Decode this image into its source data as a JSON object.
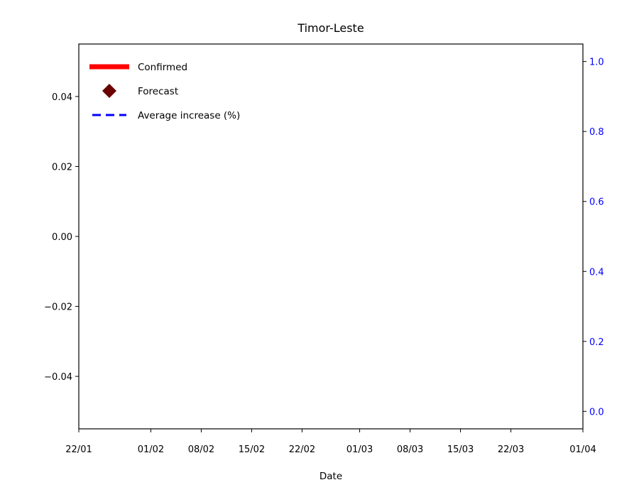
{
  "chart_data": {
    "type": "line",
    "title": "Timor-Leste",
    "xlabel": "Date",
    "ylabel": "",
    "ylabel_right": "",
    "x_tick_labels": [
      "22/01",
      "01/02",
      "08/02",
      "15/02",
      "22/02",
      "01/03",
      "08/03",
      "15/03",
      "22/03",
      "01/04"
    ],
    "x_tick_days": [
      0,
      10,
      17,
      24,
      31,
      39,
      46,
      53,
      60,
      70
    ],
    "xlim_days": [
      0,
      70
    ],
    "ylim": [
      -0.055,
      0.055
    ],
    "y_ticks": [
      -0.04,
      -0.02,
      0.0,
      0.02,
      0.04
    ],
    "y_tick_labels": [
      "−0.04",
      "−0.02",
      "0.00",
      "0.02",
      "0.04"
    ],
    "ylim_right": [
      -0.05,
      1.05
    ],
    "y_ticks_right": [
      0.0,
      0.2,
      0.4,
      0.6,
      0.8,
      1.0
    ],
    "y_tick_labels_right": [
      "0.0",
      "0.2",
      "0.4",
      "0.6",
      "0.8",
      "1.0"
    ],
    "grid": false,
    "legend_position": "top-left",
    "series": [
      {
        "name": "Confirmed",
        "style": "solid-thick",
        "color": "#ff0000",
        "values": []
      },
      {
        "name": "Forecast",
        "style": "diamond-marker",
        "color": "#6b0000",
        "values": []
      },
      {
        "name": "Average increase (%)",
        "style": "dashed",
        "color": "#0000ff",
        "axis": "right",
        "values": []
      }
    ],
    "colors": {
      "left_axis": "#000000",
      "right_axis": "#0000ff"
    }
  }
}
